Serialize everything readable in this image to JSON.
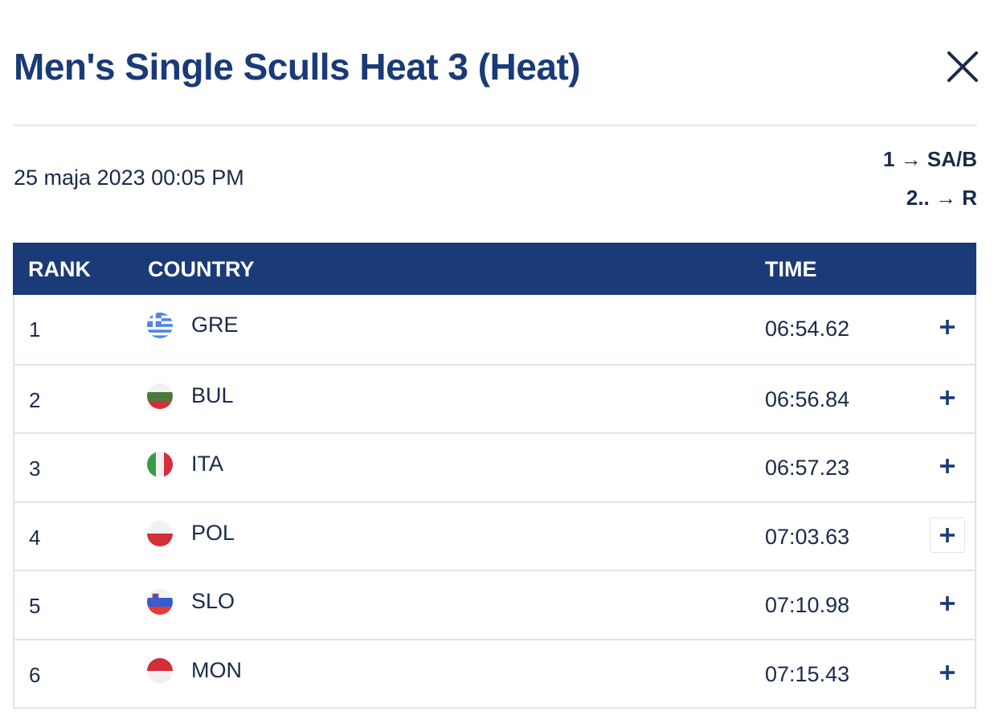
{
  "modal": {
    "title": "Men's Single Sculls Heat 3 (Heat)",
    "close_icon": "close-icon"
  },
  "race": {
    "date": "25 maja 2023 00:05 PM",
    "progression": [
      "1 → SA/B",
      "2.. → R"
    ]
  },
  "table": {
    "headers": {
      "rank": "RANK",
      "country": "COUNTRY",
      "time": "TIME"
    },
    "rows": [
      {
        "rank": "1",
        "country": "GRE",
        "time": "06:54.62",
        "flag": "greece-flag-icon"
      },
      {
        "rank": "2",
        "country": "BUL",
        "time": "06:56.84",
        "flag": "bulgaria-flag-icon"
      },
      {
        "rank": "3",
        "country": "ITA",
        "time": "06:57.23",
        "flag": "italy-flag-icon"
      },
      {
        "rank": "4",
        "country": "POL",
        "time": "07:03.63",
        "flag": "poland-flag-icon"
      },
      {
        "rank": "5",
        "country": "SLO",
        "time": "07:10.98",
        "flag": "slovenia-flag-icon"
      },
      {
        "rank": "6",
        "country": "MON",
        "time": "07:15.43",
        "flag": "monaco-flag-icon"
      }
    ],
    "expand_icon": "plus-icon"
  },
  "colors": {
    "brand_navy": "#1a3a78",
    "text": "#1b2a4a",
    "border": "#dfe3ea"
  }
}
